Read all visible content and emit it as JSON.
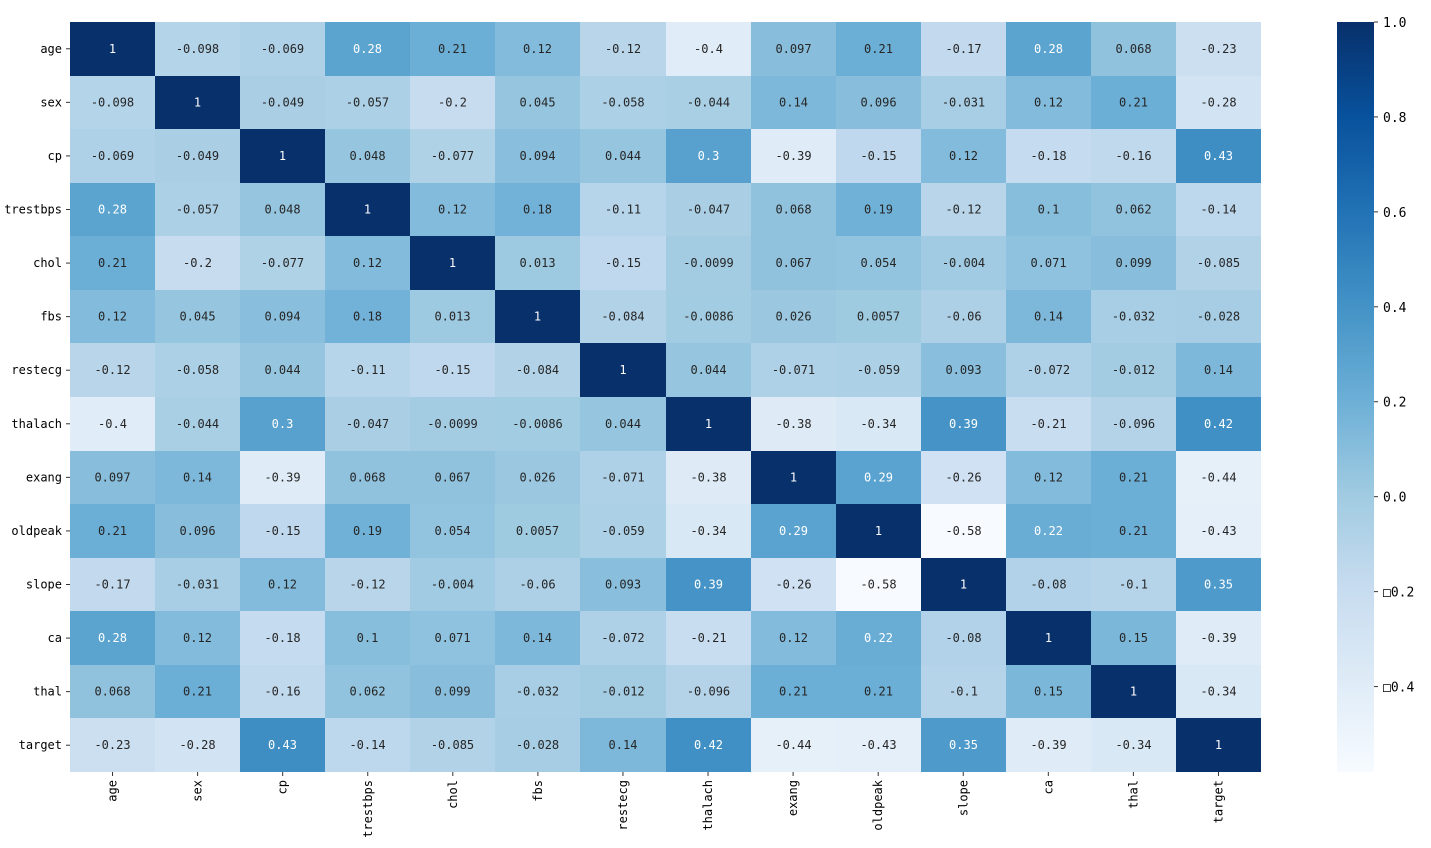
{
  "chart_data": {
    "type": "heatmap",
    "title": "",
    "xlabel": "",
    "ylabel": "",
    "x_categories": [
      "age",
      "sex",
      "cp",
      "trestbps",
      "chol",
      "fbs",
      "restecg",
      "thalach",
      "exang",
      "oldpeak",
      "slope",
      "ca",
      "thal",
      "target"
    ],
    "y_categories": [
      "age",
      "sex",
      "cp",
      "trestbps",
      "chol",
      "fbs",
      "restecg",
      "thalach",
      "exang",
      "oldpeak",
      "slope",
      "ca",
      "thal",
      "target"
    ],
    "values": [
      [
        1,
        -0.098,
        -0.069,
        0.28,
        0.21,
        0.12,
        -0.12,
        -0.4,
        0.097,
        0.21,
        -0.17,
        0.28,
        0.068,
        -0.23
      ],
      [
        -0.098,
        1,
        -0.049,
        -0.057,
        -0.2,
        0.045,
        -0.058,
        -0.044,
        0.14,
        0.096,
        -0.031,
        0.12,
        0.21,
        -0.28
      ],
      [
        -0.069,
        -0.049,
        1,
        0.048,
        -0.077,
        0.094,
        0.044,
        0.3,
        -0.39,
        -0.15,
        0.12,
        -0.18,
        -0.16,
        0.43
      ],
      [
        0.28,
        -0.057,
        0.048,
        1,
        0.12,
        0.18,
        -0.11,
        -0.047,
        0.068,
        0.19,
        -0.12,
        0.1,
        0.062,
        -0.14
      ],
      [
        0.21,
        -0.2,
        -0.077,
        0.12,
        1,
        0.013,
        -0.15,
        -0.0099,
        0.067,
        0.054,
        -0.004,
        0.071,
        0.099,
        -0.085
      ],
      [
        0.12,
        0.045,
        0.094,
        0.18,
        0.013,
        1,
        -0.084,
        -0.0086,
        0.026,
        0.0057,
        -0.06,
        0.14,
        -0.032,
        -0.028
      ],
      [
        -0.12,
        -0.058,
        0.044,
        -0.11,
        -0.15,
        -0.084,
        1,
        0.044,
        -0.071,
        -0.059,
        0.093,
        -0.072,
        -0.012,
        0.14
      ],
      [
        -0.4,
        -0.044,
        0.3,
        -0.047,
        -0.0099,
        -0.0086,
        0.044,
        1,
        -0.38,
        -0.34,
        0.39,
        -0.21,
        -0.096,
        0.42
      ],
      [
        0.097,
        0.14,
        -0.39,
        0.068,
        0.067,
        0.026,
        -0.071,
        -0.38,
        1,
        0.29,
        -0.26,
        0.12,
        0.21,
        -0.44
      ],
      [
        0.21,
        0.096,
        -0.15,
        0.19,
        0.054,
        0.0057,
        -0.059,
        -0.34,
        0.29,
        1,
        -0.58,
        0.22,
        0.21,
        -0.43
      ],
      [
        -0.17,
        -0.031,
        0.12,
        -0.12,
        -0.004,
        -0.06,
        0.093,
        0.39,
        -0.26,
        -0.58,
        1,
        -0.08,
        -0.1,
        0.35
      ],
      [
        0.28,
        0.12,
        -0.18,
        0.1,
        0.071,
        0.14,
        -0.072,
        -0.21,
        0.12,
        0.22,
        -0.08,
        1,
        0.15,
        -0.39
      ],
      [
        0.068,
        0.21,
        -0.16,
        0.062,
        0.099,
        -0.032,
        -0.012,
        -0.096,
        0.21,
        0.21,
        -0.1,
        0.15,
        1,
        -0.34
      ],
      [
        -0.23,
        -0.28,
        0.43,
        -0.14,
        -0.085,
        -0.028,
        0.14,
        0.42,
        -0.44,
        -0.43,
        0.35,
        -0.39,
        -0.34,
        1
      ]
    ],
    "annotations": [
      [
        "1",
        "-0.098",
        "-0.069",
        "0.28",
        "0.21",
        "0.12",
        "-0.12",
        "-0.4",
        "0.097",
        "0.21",
        "-0.17",
        "0.28",
        "0.068",
        "-0.23"
      ],
      [
        "-0.098",
        "1",
        "-0.049",
        "-0.057",
        "-0.2",
        "0.045",
        "-0.058",
        "-0.044",
        "0.14",
        "0.096",
        "-0.031",
        "0.12",
        "0.21",
        "-0.28"
      ],
      [
        "-0.069",
        "-0.049",
        "1",
        "0.048",
        "-0.077",
        "0.094",
        "0.044",
        "0.3",
        "-0.39",
        "-0.15",
        "0.12",
        "-0.18",
        "-0.16",
        "0.43"
      ],
      [
        "0.28",
        "-0.057",
        "0.048",
        "1",
        "0.12",
        "0.18",
        "-0.11",
        "-0.047",
        "0.068",
        "0.19",
        "-0.12",
        "0.1",
        "0.062",
        "-0.14"
      ],
      [
        "0.21",
        "-0.2",
        "-0.077",
        "0.12",
        "1",
        "0.013",
        "-0.15",
        "-0.0099",
        "0.067",
        "0.054",
        "-0.004",
        "0.071",
        "0.099",
        "-0.085"
      ],
      [
        "0.12",
        "0.045",
        "0.094",
        "0.18",
        "0.013",
        "1",
        "-0.084",
        "-0.0086",
        "0.026",
        "0.0057",
        "-0.06",
        "0.14",
        "-0.032",
        "-0.028"
      ],
      [
        "-0.12",
        "-0.058",
        "0.044",
        "-0.11",
        "-0.15",
        "-0.084",
        "1",
        "0.044",
        "-0.071",
        "-0.059",
        "0.093",
        "-0.072",
        "-0.012",
        "0.14"
      ],
      [
        "-0.4",
        "-0.044",
        "0.3",
        "-0.047",
        "-0.0099",
        "-0.0086",
        "0.044",
        "1",
        "-0.38",
        "-0.34",
        "0.39",
        "-0.21",
        "-0.096",
        "0.42"
      ],
      [
        "0.097",
        "0.14",
        "-0.39",
        "0.068",
        "0.067",
        "0.026",
        "-0.071",
        "-0.38",
        "1",
        "0.29",
        "-0.26",
        "0.12",
        "0.21",
        "-0.44"
      ],
      [
        "0.21",
        "0.096",
        "-0.15",
        "0.19",
        "0.054",
        "0.0057",
        "-0.059",
        "-0.34",
        "0.29",
        "1",
        "-0.58",
        "0.22",
        "0.21",
        "-0.43"
      ],
      [
        "-0.17",
        "-0.031",
        "0.12",
        "-0.12",
        "-0.004",
        "-0.06",
        "0.093",
        "0.39",
        "-0.26",
        "-0.58",
        "1",
        "-0.08",
        "-0.1",
        "0.35"
      ],
      [
        "0.28",
        "0.12",
        "-0.18",
        "0.1",
        "0.071",
        "0.14",
        "-0.072",
        "-0.21",
        "0.12",
        "0.22",
        "-0.08",
        "1",
        "0.15",
        "-0.39"
      ],
      [
        "0.068",
        "0.21",
        "-0.16",
        "0.062",
        "0.099",
        "-0.032",
        "-0.012",
        "-0.096",
        "0.21",
        "0.21",
        "-0.1",
        "0.15",
        "1",
        "-0.34"
      ],
      [
        "-0.23",
        "-0.28",
        "0.43",
        "-0.14",
        "-0.085",
        "-0.028",
        "0.14",
        "0.42",
        "-0.44",
        "-0.43",
        "0.35",
        "-0.39",
        "-0.34",
        "1"
      ]
    ],
    "colormap": "Blues",
    "vmin": -0.58,
    "vmax": 1.0,
    "colorbar": {
      "ticks": [
        1.0,
        0.8,
        0.6,
        0.4,
        0.2,
        0.0,
        -0.2,
        -0.4
      ],
      "tick_labels": [
        "1.0",
        "0.8",
        "0.6",
        "0.4",
        "0.2",
        "0.0",
        "□0.2",
        "□0.4"
      ],
      "placement": "right"
    },
    "grid": false,
    "legend": "none"
  }
}
